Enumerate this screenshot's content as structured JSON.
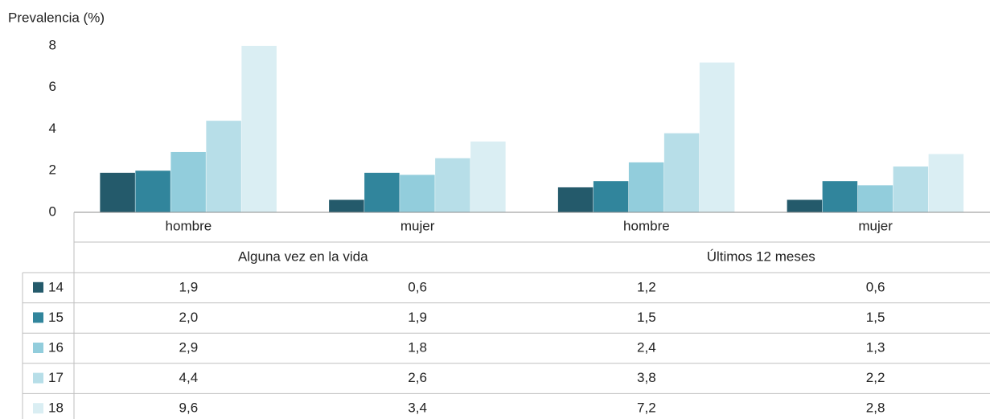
{
  "chart_data": {
    "type": "bar",
    "y_label": "Prevalencia (%)",
    "categories": [
      "hombre",
      "mujer",
      "hombre",
      "mujer"
    ],
    "groups": [
      "Alguna vez en la vida",
      "Últimos 12 meses"
    ],
    "ylim": [
      0,
      8
    ],
    "yticks": [
      0,
      2,
      4,
      6,
      8
    ],
    "grid": false,
    "series": [
      {
        "name": "14",
        "color": "#245a6b",
        "values": [
          1.9,
          0.6,
          1.2,
          0.6
        ],
        "value_labels": [
          "1,9",
          "0,6",
          "1,2",
          "0,6"
        ]
      },
      {
        "name": "15",
        "color": "#31859c",
        "values": [
          2.0,
          1.9,
          1.5,
          1.5
        ],
        "value_labels": [
          "2,0",
          "1,9",
          "1,5",
          "1,5"
        ]
      },
      {
        "name": "16",
        "color": "#92cddc",
        "values": [
          2.9,
          1.8,
          2.4,
          1.3
        ],
        "value_labels": [
          "2,9",
          "1,8",
          "2,4",
          "1,3"
        ]
      },
      {
        "name": "17",
        "color": "#b7dee8",
        "values": [
          4.4,
          2.6,
          3.8,
          2.2
        ],
        "value_labels": [
          "4,4",
          "2,6",
          "3,8",
          "2,2"
        ]
      },
      {
        "name": "18",
        "color": "#daeef3",
        "values": [
          9.6,
          3.4,
          7.2,
          2.8
        ],
        "value_labels": [
          "9,6",
          "3,4",
          "7,2",
          "2,8"
        ]
      }
    ]
  }
}
